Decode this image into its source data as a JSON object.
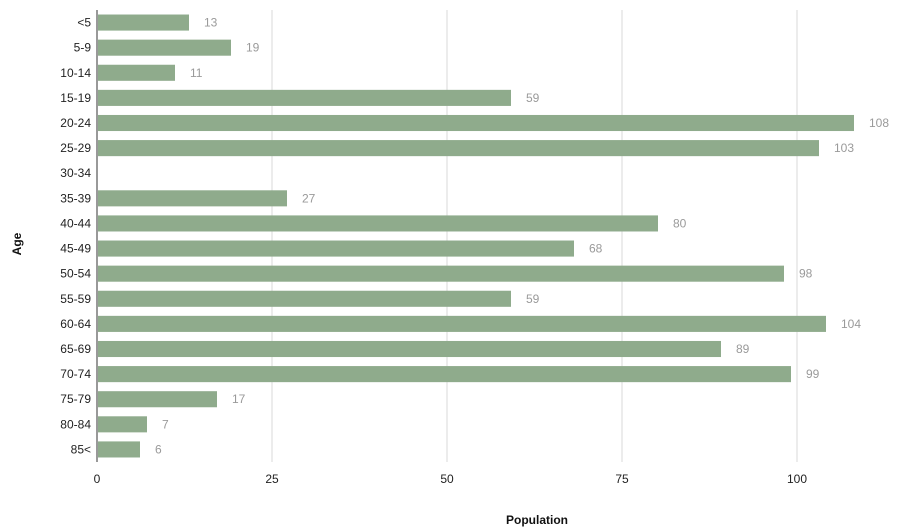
{
  "chart_data": {
    "type": "bar",
    "orientation": "horizontal",
    "categories": [
      "<5",
      "5-9",
      "10-14",
      "15-19",
      "20-24",
      "25-29",
      "30-34",
      "35-39",
      "40-44",
      "45-49",
      "50-54",
      "55-59",
      "60-64",
      "65-69",
      "70-74",
      "75-79",
      "80-84",
      "85<"
    ],
    "values": [
      13,
      19,
      11,
      59,
      108,
      103,
      0,
      27,
      80,
      68,
      98,
      59,
      104,
      89,
      99,
      17,
      7,
      6
    ],
    "value_labels": [
      "13",
      "19",
      "11",
      "59",
      "108",
      "103",
      "",
      "27",
      "80",
      "68",
      "98",
      "59",
      "104",
      "89",
      "99",
      "17",
      "7",
      "6"
    ],
    "xlabel": "Population",
    "ylabel": "Age",
    "xlim": [
      0,
      110
    ],
    "xticks": [
      0,
      25,
      50,
      75,
      100
    ],
    "grid": "vertical",
    "bar_color": "#8fab8c",
    "grid_color": "#d9d9d9",
    "value_label_color": "#9a9a9a"
  }
}
